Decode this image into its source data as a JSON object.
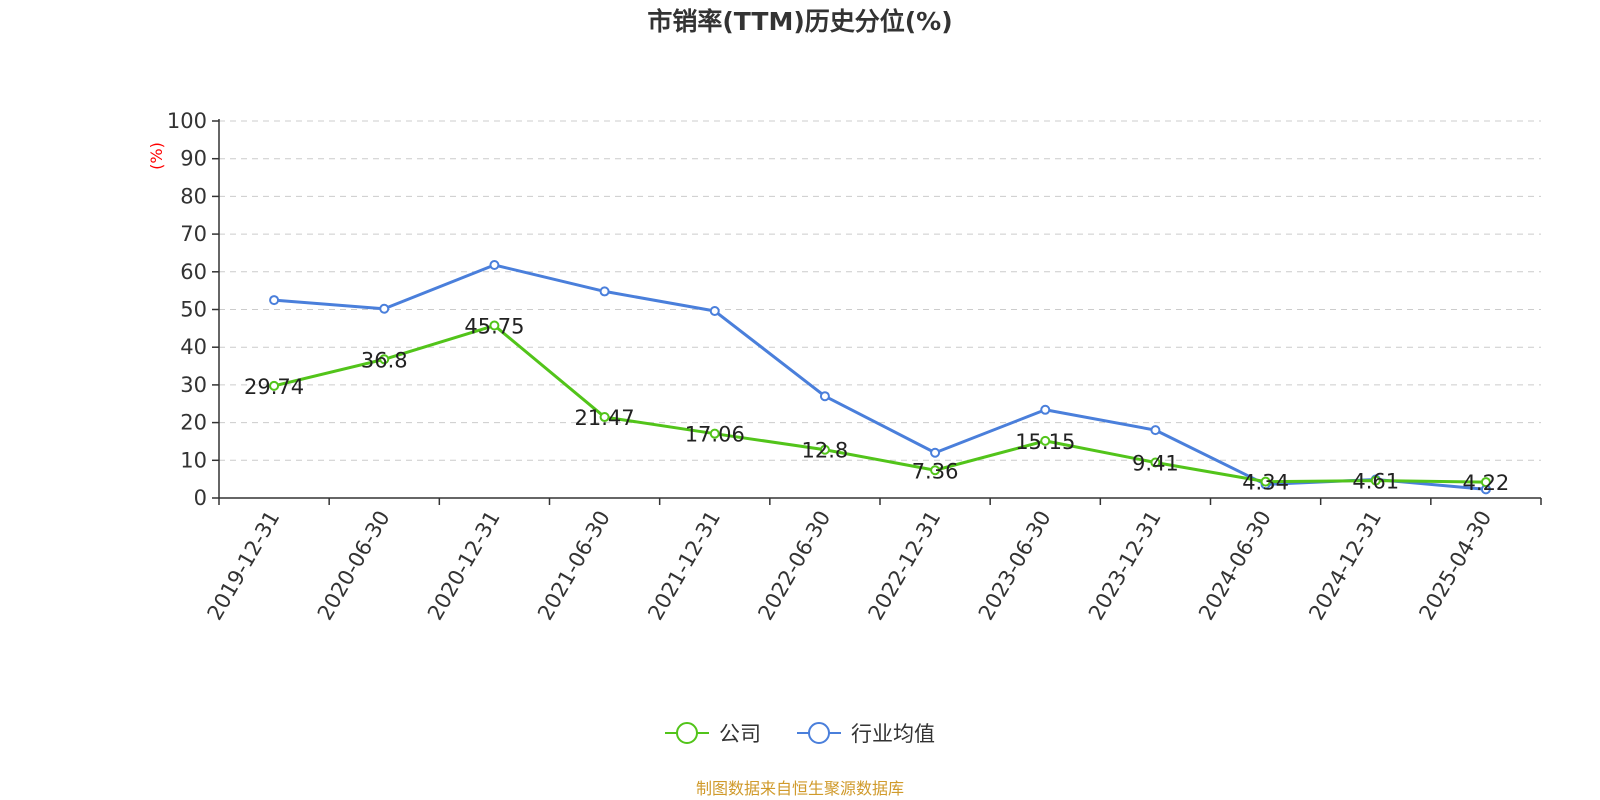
{
  "colors": {
    "company": "#52c41a",
    "industry": "#4a7fdb",
    "unit_label": "#ff0000",
    "source": "#d09a2b"
  },
  "chart_data": {
    "type": "line",
    "title": "市销率(TTM)历史分位(%)",
    "ylabel": "(%)",
    "ylim": [
      0,
      100
    ],
    "yticks": [
      0,
      10,
      20,
      30,
      40,
      50,
      60,
      70,
      80,
      90,
      100
    ],
    "grid": true,
    "legend_position": "bottom-center",
    "categories": [
      "2019-12-31",
      "2020-06-30",
      "2020-12-31",
      "2021-06-30",
      "2021-12-31",
      "2022-06-30",
      "2022-12-31",
      "2023-06-30",
      "2023-12-31",
      "2024-06-30",
      "2024-12-31",
      "2025-04-30"
    ],
    "series": [
      {
        "name": "公司",
        "values": [
          29.74,
          36.8,
          45.75,
          21.47,
          17.06,
          12.8,
          7.36,
          15.15,
          9.41,
          4.34,
          4.61,
          4.22
        ],
        "labels": [
          "29.74",
          "36.8",
          "45.75",
          "21.47",
          "17.06",
          "12.8",
          "7.36",
          "15.15",
          "9.41",
          "4.34",
          "4.61",
          "4.22"
        ]
      },
      {
        "name": "行业均值",
        "values": [
          52.5,
          50.2,
          61.8,
          54.8,
          49.6,
          27.0,
          12.0,
          23.4,
          18.0,
          3.6,
          4.9,
          2.3
        ]
      }
    ]
  },
  "footer": {
    "source": "制图数据来自恒生聚源数据库"
  }
}
